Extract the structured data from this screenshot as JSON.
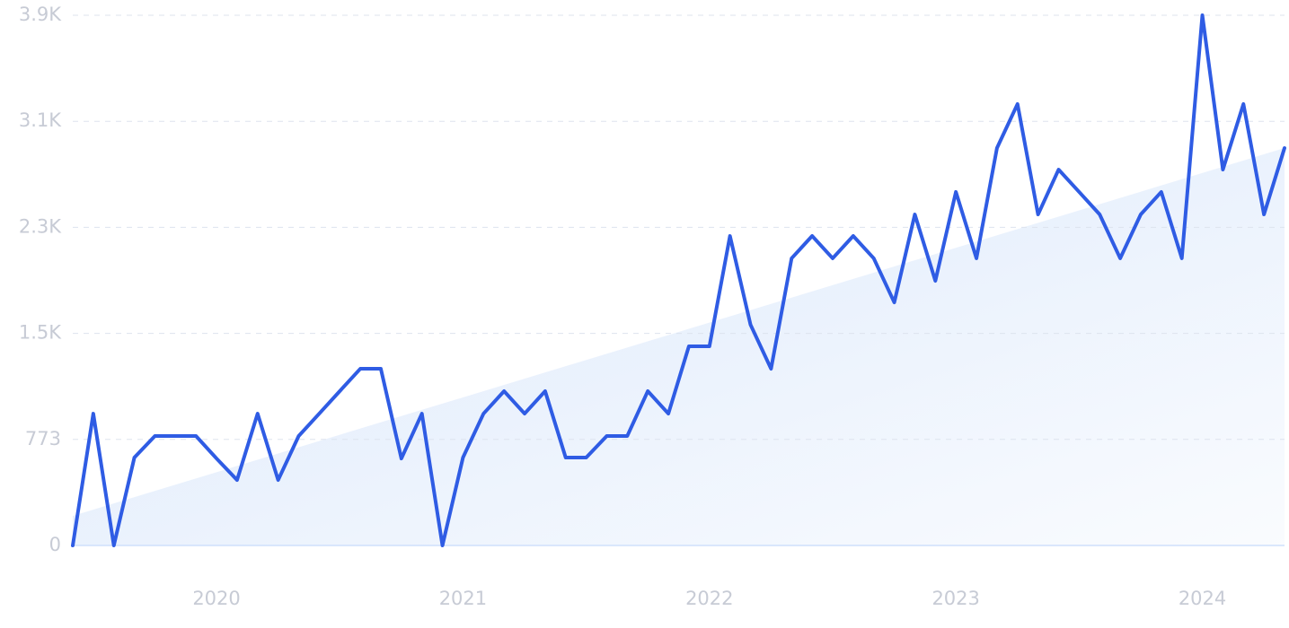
{
  "chart_data": {
    "type": "line",
    "categories": [
      null,
      null,
      null,
      null,
      null,
      null,
      null,
      "2020",
      null,
      null,
      null,
      null,
      null,
      null,
      null,
      null,
      null,
      null,
      null,
      "2021",
      null,
      null,
      null,
      null,
      null,
      null,
      null,
      null,
      null,
      null,
      null,
      "2022",
      null,
      null,
      null,
      null,
      null,
      null,
      null,
      null,
      null,
      null,
      null,
      "2023",
      null,
      null,
      null,
      null,
      null,
      null,
      null,
      null,
      null,
      null,
      null,
      "2024",
      null,
      null,
      null,
      null
    ],
    "series": [
      {
        "color": "#2f5ce4",
        "values": [
          0,
          961,
          0,
          641,
          798,
          798,
          798,
          634,
          477,
          961,
          477,
          798,
          961,
          1125,
          1288,
          1288,
          634,
          961,
          0,
          641,
          961,
          1125,
          961,
          1125,
          641,
          641,
          798,
          798,
          1125,
          961,
          1452,
          1452,
          2256,
          1609,
          1288,
          2093,
          2256,
          2093,
          2256,
          2093,
          1772,
          2413,
          1929,
          2577,
          2093,
          2897,
          3218,
          2413,
          2740,
          2577,
          2413,
          2093,
          2413,
          2577,
          2093,
          3865,
          2740,
          3218,
          2413,
          2897
        ]
      }
    ],
    "trend": [
      216,
      2897
    ],
    "trend_color": "#dbe8fb",
    "ylim": [
      0,
      3865
    ],
    "yticks": [
      0,
      773,
      {
        "value": 1546,
        "label": "1.5K"
      },
      {
        "value": 2319,
        "label": "2.3K"
      },
      {
        "value": 3092,
        "label": "3.1K"
      },
      {
        "value": 3865,
        "label": "3.9K"
      }
    ],
    "grid": true
  }
}
